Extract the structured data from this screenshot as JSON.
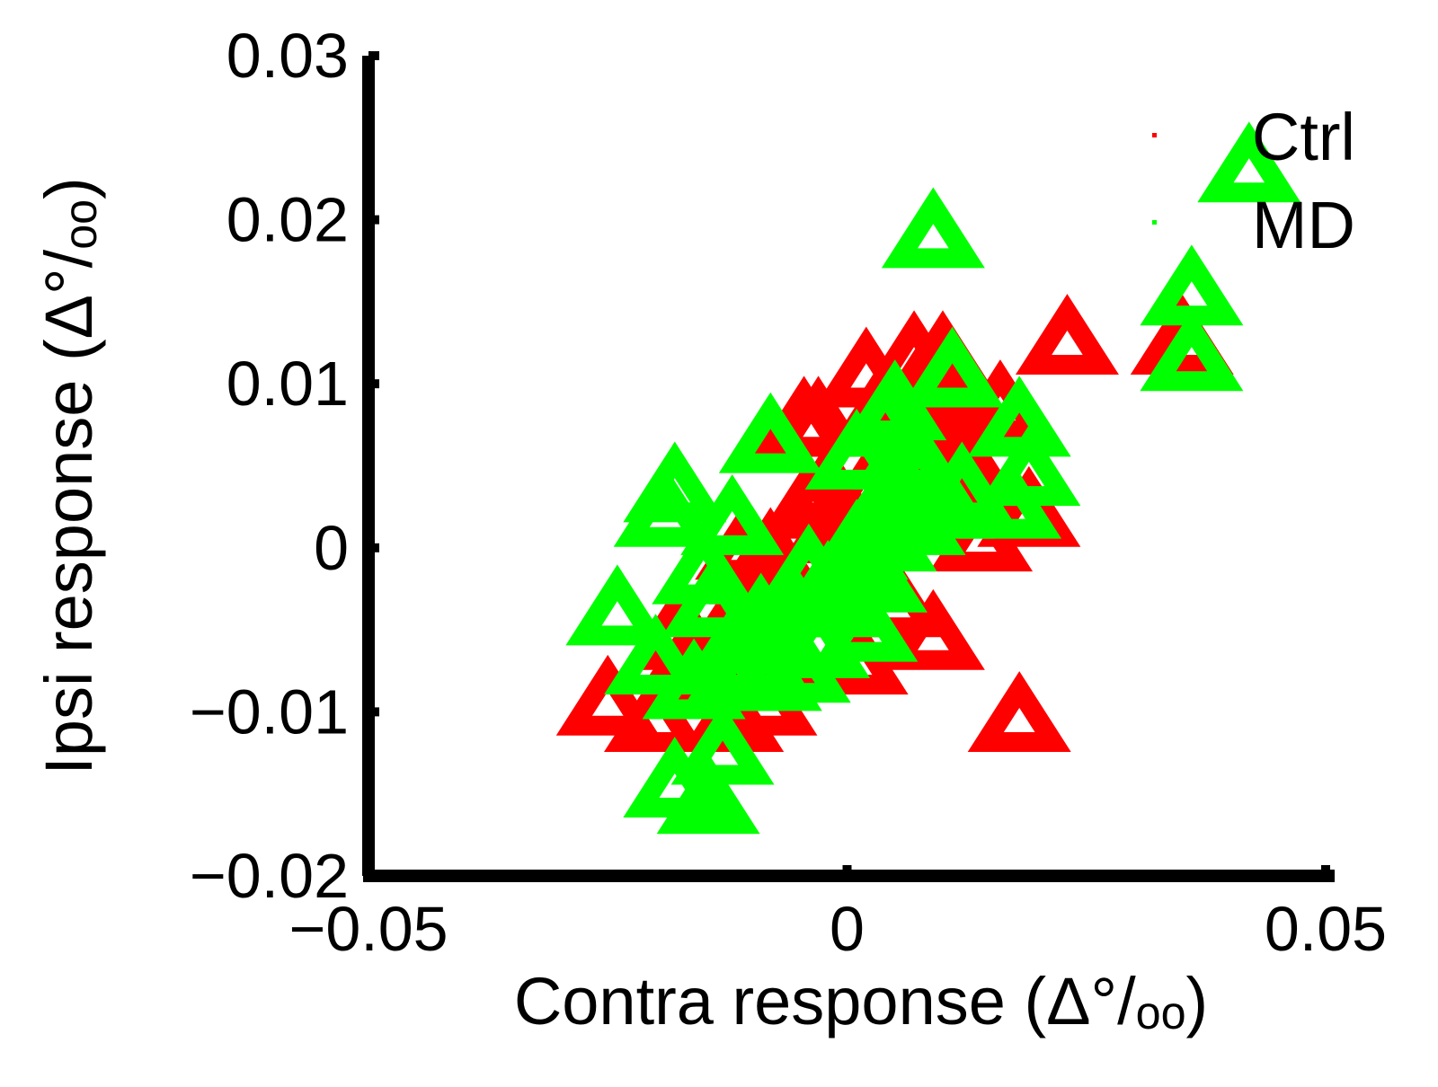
{
  "chart_data": {
    "type": "scatter",
    "xlabel": "Contra response (Δ°/ₒₒ)",
    "ylabel": "Ipsi response (Δ°/ₒₒ)",
    "xlim": [
      -0.05,
      0.05
    ],
    "ylim": [
      -0.02,
      0.03
    ],
    "xticks": [
      "−0.05",
      "0",
      "0.05"
    ],
    "yticks": [
      "−0.02",
      "−0.01",
      "0",
      "0.01",
      "0.02",
      "0.03"
    ],
    "xtick_values": [
      -0.05,
      0,
      0.05
    ],
    "ytick_values": [
      -0.02,
      -0.01,
      0,
      0.01,
      0.02,
      0.03
    ],
    "grid": false,
    "legend_position": "top-right",
    "marker": "triangle",
    "series": [
      {
        "name": "Ctrl",
        "color": "#ff0000",
        "points": [
          [
            -0.025,
            -0.0095
          ],
          [
            -0.02,
            -0.0105
          ],
          [
            -0.018,
            -0.0055
          ],
          [
            -0.016,
            -0.0065
          ],
          [
            -0.015,
            -0.0085
          ],
          [
            -0.013,
            -0.0075
          ],
          [
            -0.012,
            -0.0105
          ],
          [
            -0.011,
            -0.0045
          ],
          [
            -0.01,
            -0.003
          ],
          [
            -0.009,
            -0.0015
          ],
          [
            -0.0085,
            -0.0095
          ],
          [
            -0.008,
            -0.0005
          ],
          [
            -0.007,
            -0.0065
          ],
          [
            -0.006,
            -0.0035
          ],
          [
            -0.005,
            0.001
          ],
          [
            -0.004,
            0.0025
          ],
          [
            -0.003,
            0.0075
          ],
          [
            -0.002,
            0.0035
          ],
          [
            -0.001,
            0.0015
          ],
          [
            0.0,
            -0.0015
          ],
          [
            0.001,
            -0.007
          ],
          [
            0.002,
            0.0105
          ],
          [
            0.003,
            0.004
          ],
          [
            0.004,
            0.0085
          ],
          [
            0.005,
            -0.0035
          ],
          [
            0.006,
            0.003
          ],
          [
            0.007,
            0.0115
          ],
          [
            0.008,
            0.0065
          ],
          [
            0.009,
            -0.0055
          ],
          [
            0.01,
            0.0115
          ],
          [
            0.011,
            0.0055
          ],
          [
            0.012,
            0.0095
          ],
          [
            0.013,
            0.0045
          ],
          [
            0.014,
            0.0005
          ],
          [
            0.016,
            0.0085
          ],
          [
            0.018,
            -0.0105
          ],
          [
            0.019,
            0.002
          ],
          [
            0.023,
            0.0125
          ],
          [
            0.035,
            0.0125
          ],
          [
            -0.0045,
            0.0075
          ],
          [
            0.0075,
            0.0095
          ],
          [
            -0.0105,
            0.0
          ]
        ]
      },
      {
        "name": "MD",
        "color": "#00ff00",
        "points": [
          [
            -0.024,
            -0.004
          ],
          [
            -0.02,
            -0.007
          ],
          [
            -0.019,
            0.002
          ],
          [
            -0.018,
            0.0035
          ],
          [
            -0.018,
            -0.0145
          ],
          [
            -0.016,
            -0.0085
          ],
          [
            -0.015,
            -0.0015
          ],
          [
            -0.0145,
            -0.0155
          ],
          [
            -0.014,
            -0.0035
          ],
          [
            -0.013,
            -0.0125
          ],
          [
            -0.012,
            0.0015
          ],
          [
            -0.012,
            -0.008
          ],
          [
            -0.011,
            -0.0055
          ],
          [
            -0.01,
            -0.007
          ],
          [
            -0.009,
            -0.0045
          ],
          [
            -0.008,
            0.0065
          ],
          [
            -0.008,
            -0.008
          ],
          [
            -0.007,
            -0.0055
          ],
          [
            -0.006,
            -0.0035
          ],
          [
            -0.005,
            -0.0075
          ],
          [
            -0.004,
            -0.0015
          ],
          [
            -0.003,
            -0.006
          ],
          [
            -0.002,
            -0.0025
          ],
          [
            -0.001,
            -0.0035
          ],
          [
            0.0,
            -0.001
          ],
          [
            0.001,
            0.0
          ],
          [
            0.001,
            0.0055
          ],
          [
            0.002,
            -0.005
          ],
          [
            0.003,
            -0.002
          ],
          [
            0.004,
            0.0075
          ],
          [
            0.004,
            0.0005
          ],
          [
            0.005,
            0.0035
          ],
          [
            0.005,
            0.0085
          ],
          [
            0.006,
            0.0055
          ],
          [
            0.007,
            0.0015
          ],
          [
            0.008,
            0.0045
          ],
          [
            0.009,
            0.019
          ],
          [
            0.01,
            0.0025
          ],
          [
            0.011,
            0.0105
          ],
          [
            0.012,
            0.0035
          ],
          [
            0.017,
            0.0025
          ],
          [
            0.018,
            0.0075
          ],
          [
            0.019,
            0.0045
          ],
          [
            0.036,
            0.0115
          ],
          [
            0.036,
            0.0155
          ],
          [
            0.042,
            0.023
          ]
        ]
      }
    ]
  }
}
